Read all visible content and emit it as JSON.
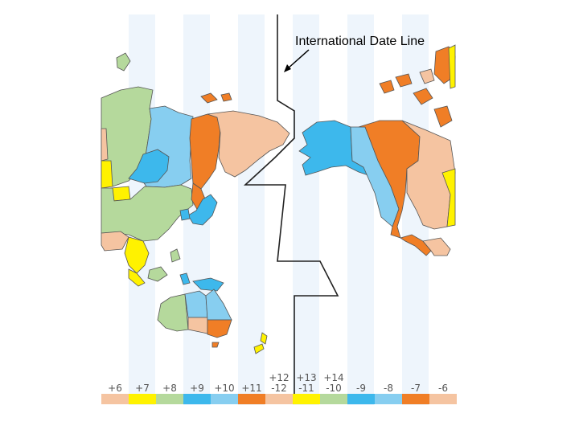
{
  "annotation": {
    "label": "International Date Line"
  },
  "colors": {
    "band": "#eef5fc",
    "peach": "#f5c4a1",
    "yellow": "#fff200",
    "green": "#b5d99c",
    "blue_dark": "#3db8ec",
    "blue_light": "#87cef0",
    "orange": "#f07e26",
    "outline": "#333333"
  },
  "timezone_legend": [
    {
      "label": "+6",
      "color": "#f5c4a1"
    },
    {
      "label": "+7",
      "color": "#fff200"
    },
    {
      "label": "+8",
      "color": "#b5d99c"
    },
    {
      "label": "+9",
      "color": "#3db8ec"
    },
    {
      "label": "+10",
      "color": "#87cef0"
    },
    {
      "label": "+11",
      "color": "#f07e26"
    },
    {
      "label": "+12",
      "label2": "-12",
      "color": "#f5c4a1"
    },
    {
      "label": "+13",
      "label2": "-11",
      "color": "#fff200"
    },
    {
      "label": "+14",
      "label2": "-10",
      "color": "#b5d99c"
    },
    {
      "label": "-9",
      "color": "#3db8ec"
    },
    {
      "label": "-8",
      "color": "#87cef0"
    },
    {
      "label": "-7",
      "color": "#f07e26"
    },
    {
      "label": "-6",
      "color": "#f5c4a1"
    }
  ]
}
